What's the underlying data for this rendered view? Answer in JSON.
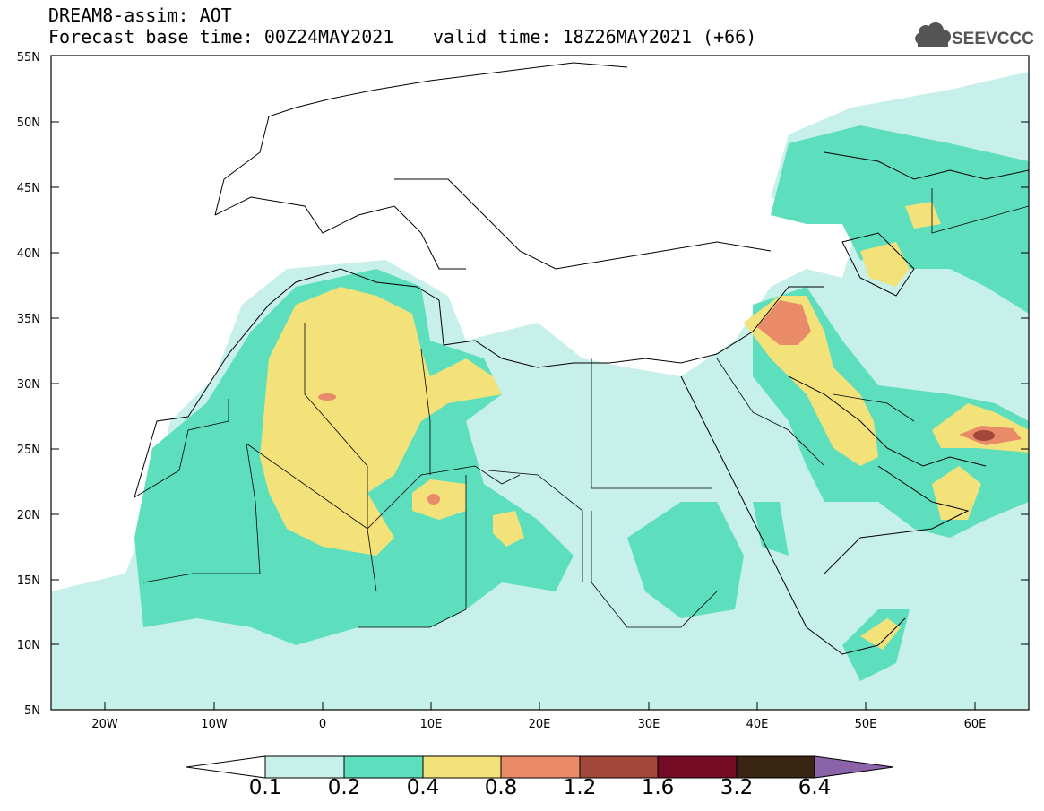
{
  "header": {
    "line1": "DREAM8-assim: AOT",
    "line2": "Forecast base time: 00Z24MAY2021",
    "line3": "valid time: 18Z26MAY2021 (+66)"
  },
  "logo": {
    "text": "SEEVCCC",
    "icon": "cloud-icon"
  },
  "map": {
    "lat_labels": [
      "55N",
      "50N",
      "45N",
      "40N",
      "35N",
      "30N",
      "25N",
      "20N",
      "15N",
      "10N",
      "5N"
    ],
    "lon_labels": [
      "20W",
      "10W",
      "0",
      "10E",
      "20E",
      "30E",
      "40E",
      "50E",
      "60E"
    ]
  },
  "colorbar": {
    "labels": [
      "0.1",
      "0.2",
      "0.4",
      "0.8",
      "1.2",
      "1.6",
      "3.2",
      "6.4"
    ],
    "colors": [
      "#ffffff",
      "#c7f0ea",
      "#5ddfbd",
      "#f3e27a",
      "#e98a68",
      "#a2483a",
      "#740c26",
      "#3a2412",
      "#8a63a9"
    ]
  },
  "colors": {
    "aot_0_1": "#c7f0ea",
    "aot_0_2": "#5ddfbd",
    "aot_0_4": "#f3e27a",
    "aot_0_8": "#e98a68",
    "aot_1_2": "#a2483a"
  }
}
